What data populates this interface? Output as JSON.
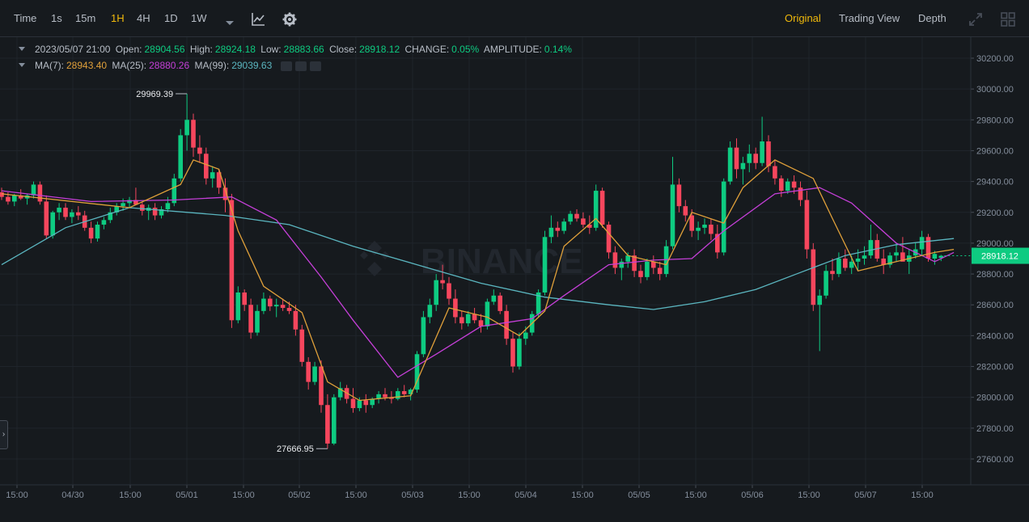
{
  "toolbar": {
    "intervals": [
      {
        "label": "Time",
        "active": false
      },
      {
        "label": "1s",
        "active": false
      },
      {
        "label": "15m",
        "active": false
      },
      {
        "label": "1H",
        "active": true
      },
      {
        "label": "4H",
        "active": false
      },
      {
        "label": "1D",
        "active": false
      },
      {
        "label": "1W",
        "active": false
      }
    ],
    "views": [
      {
        "label": "Original",
        "active": true
      },
      {
        "label": "Trading View",
        "active": false
      },
      {
        "label": "Depth",
        "active": false
      }
    ],
    "icons": [
      "chevron-down-icon",
      "indicator-icon",
      "gear-icon",
      "expand-icon",
      "grid-layout-icon"
    ]
  },
  "ohlc": {
    "date": "2023/05/07 21:00",
    "open_label": "Open:",
    "open": "28904.56",
    "high_label": "High:",
    "high": "28924.18",
    "low_label": "Low:",
    "low": "28883.66",
    "close_label": "Close:",
    "close": "28918.12",
    "change_label": "CHANGE:",
    "change": "0.05%",
    "amplitude_label": "AMPLITUDE:",
    "amplitude": "0.14%"
  },
  "ma": {
    "ma7_label": "MA(7):",
    "ma7": "28943.40",
    "ma25_label": "MA(25):",
    "ma25": "28880.26",
    "ma99_label": "MA(99):",
    "ma99": "29039.63"
  },
  "watermark": "BINANCE",
  "colors": {
    "up": "#0ecb81",
    "down": "#f6465d",
    "ma7": "#e0a03a",
    "ma25": "#c53fd8",
    "ma99": "#5bb6c0",
    "active": "#f0b90b",
    "background": "#161a1e",
    "grid": "#1f242b"
  },
  "chart_data": {
    "type": "candlestick",
    "interval": "1H",
    "ylim": [
      27500,
      30300
    ],
    "y_ticks": [
      "30200.00",
      "30000.00",
      "29800.00",
      "29600.00",
      "29400.00",
      "29200.00",
      "29000.00",
      "28800.00",
      "28600.00",
      "28400.00",
      "28200.00",
      "28000.00",
      "27800.00",
      "27600.00"
    ],
    "x_ticks": [
      "15:00",
      "04/30",
      "15:00",
      "05/01",
      "15:00",
      "05/02",
      "15:00",
      "05/03",
      "15:00",
      "05/04",
      "15:00",
      "05/05",
      "15:00",
      "05/06",
      "15:00",
      "05/07",
      "15:00"
    ],
    "max_label": "29969.39",
    "min_label": "27666.95",
    "last_price": "28918.12",
    "candles": [
      [
        29330,
        29360,
        29280,
        29300
      ],
      [
        29300,
        29330,
        29250,
        29270
      ],
      [
        29270,
        29320,
        29240,
        29310
      ],
      [
        29310,
        29350,
        29280,
        29290
      ],
      [
        29290,
        29320,
        29250,
        29310
      ],
      [
        29310,
        29400,
        29290,
        29380
      ],
      [
        29380,
        29400,
        29250,
        29270
      ],
      [
        29270,
        29310,
        29030,
        29050
      ],
      [
        29050,
        29210,
        29030,
        29200
      ],
      [
        29200,
        29260,
        29150,
        29230
      ],
      [
        29230,
        29260,
        29150,
        29170
      ],
      [
        29170,
        29220,
        29130,
        29200
      ],
      [
        29200,
        29240,
        29150,
        29180
      ],
      [
        29180,
        29210,
        29080,
        29100
      ],
      [
        29100,
        29140,
        29000,
        29030
      ],
      [
        29030,
        29140,
        29010,
        29120
      ],
      [
        29120,
        29170,
        29090,
        29150
      ],
      [
        29150,
        29230,
        29130,
        29200
      ],
      [
        29200,
        29260,
        29180,
        29240
      ],
      [
        29240,
        29290,
        29210,
        29260
      ],
      [
        29260,
        29300,
        29230,
        29280
      ],
      [
        29280,
        29360,
        29260,
        29250
      ],
      [
        29250,
        29270,
        29180,
        29210
      ],
      [
        29210,
        29250,
        29150,
        29230
      ],
      [
        29230,
        29260,
        29150,
        29180
      ],
      [
        29180,
        29240,
        29160,
        29220
      ],
      [
        29220,
        29300,
        29200,
        29260
      ],
      [
        29260,
        29450,
        29240,
        29420
      ],
      [
        29420,
        29740,
        29400,
        29700
      ],
      [
        29700,
        29969.39,
        29600,
        29800
      ],
      [
        29800,
        29840,
        29560,
        29620
      ],
      [
        29620,
        29700,
        29520,
        29580
      ],
      [
        29580,
        29620,
        29380,
        29420
      ],
      [
        29420,
        29500,
        29360,
        29460
      ],
      [
        29460,
        29480,
        29320,
        29360
      ],
      [
        29360,
        29420,
        29200,
        29280
      ],
      [
        29280,
        29320,
        28450,
        28500
      ],
      [
        28500,
        28720,
        28480,
        28680
      ],
      [
        28680,
        28700,
        28560,
        28600
      ],
      [
        28600,
        28640,
        28380,
        28420
      ],
      [
        28420,
        28600,
        28400,
        28560
      ],
      [
        28560,
        28680,
        28540,
        28640
      ],
      [
        28640,
        28660,
        28560,
        28590
      ],
      [
        28590,
        28640,
        28520,
        28600
      ],
      [
        28600,
        28640,
        28560,
        28580
      ],
      [
        28580,
        28620,
        28540,
        28560
      ],
      [
        28560,
        28600,
        28400,
        28440
      ],
      [
        28440,
        28470,
        28200,
        28230
      ],
      [
        28230,
        28260,
        28050,
        28100
      ],
      [
        28100,
        28230,
        28080,
        28200
      ],
      [
        28200,
        28240,
        27900,
        27950
      ],
      [
        27950,
        28020,
        27666.95,
        27700
      ],
      [
        27700,
        28020,
        27690,
        28000
      ],
      [
        28000,
        28100,
        27980,
        28060
      ],
      [
        28060,
        28080,
        27960,
        27990
      ],
      [
        27990,
        28060,
        27900,
        27930
      ],
      [
        27930,
        28000,
        27910,
        27980
      ],
      [
        27980,
        28020,
        27900,
        27950
      ],
      [
        27950,
        28000,
        27930,
        27990
      ],
      [
        27990,
        28040,
        27960,
        28020
      ],
      [
        28020,
        28060,
        27980,
        28000
      ],
      [
        28000,
        28040,
        27960,
        27990
      ],
      [
        27990,
        28060,
        27980,
        28040
      ],
      [
        28040,
        28080,
        28000,
        28020
      ],
      [
        28020,
        28060,
        27980,
        28050
      ],
      [
        28050,
        28300,
        28030,
        28280
      ],
      [
        28280,
        28560,
        28260,
        28520
      ],
      [
        28520,
        28640,
        28480,
        28600
      ],
      [
        28600,
        28800,
        28560,
        28760
      ],
      [
        28760,
        28860,
        28700,
        28740
      ],
      [
        28740,
        28780,
        28600,
        28640
      ],
      [
        28640,
        28700,
        28480,
        28520
      ],
      [
        28520,
        28560,
        28440,
        28480
      ],
      [
        28480,
        28560,
        28460,
        28540
      ],
      [
        28540,
        28580,
        28480,
        28500
      ],
      [
        28500,
        28540,
        28420,
        28460
      ],
      [
        28460,
        28640,
        28440,
        28620
      ],
      [
        28620,
        28700,
        28600,
        28660
      ],
      [
        28660,
        28680,
        28540,
        28560
      ],
      [
        28560,
        28600,
        28340,
        28380
      ],
      [
        28380,
        28420,
        28160,
        28200
      ],
      [
        28200,
        28420,
        28180,
        28380
      ],
      [
        28380,
        28460,
        28340,
        28420
      ],
      [
        28420,
        28560,
        28400,
        28540
      ],
      [
        28540,
        28700,
        28520,
        28680
      ],
      [
        28680,
        29080,
        28660,
        29040
      ],
      [
        29040,
        29180,
        29000,
        29100
      ],
      [
        29100,
        29140,
        29040,
        29080
      ],
      [
        29080,
        29160,
        29060,
        29140
      ],
      [
        29140,
        29210,
        29120,
        29190
      ],
      [
        29190,
        29220,
        29140,
        29160
      ],
      [
        29160,
        29200,
        29100,
        29120
      ],
      [
        29120,
        29180,
        29060,
        29100
      ],
      [
        29100,
        29380,
        29080,
        29340
      ],
      [
        29340,
        29360,
        29100,
        29120
      ],
      [
        29120,
        29140,
        28900,
        28940
      ],
      [
        28940,
        28980,
        28800,
        28840
      ],
      [
        28840,
        28900,
        28760,
        28880
      ],
      [
        28880,
        28940,
        28840,
        28920
      ],
      [
        28920,
        28960,
        28780,
        28820
      ],
      [
        28820,
        28860,
        28740,
        28780
      ],
      [
        28780,
        28900,
        28760,
        28880
      ],
      [
        28880,
        28920,
        28800,
        28840
      ],
      [
        28840,
        28880,
        28760,
        28800
      ],
      [
        28800,
        29020,
        28780,
        28980
      ],
      [
        28980,
        29560,
        28960,
        29380
      ],
      [
        29380,
        29420,
        29200,
        29240
      ],
      [
        29240,
        29280,
        29140,
        29180
      ],
      [
        29180,
        29220,
        29040,
        29080
      ],
      [
        29080,
        29140,
        29020,
        29100
      ],
      [
        29100,
        29160,
        29060,
        29120
      ],
      [
        29120,
        29160,
        29020,
        29060
      ],
      [
        29060,
        29120,
        28900,
        28940
      ],
      [
        28940,
        29420,
        28920,
        29400
      ],
      [
        29400,
        29660,
        29380,
        29620
      ],
      [
        29620,
        29680,
        29420,
        29480
      ],
      [
        29480,
        29560,
        29380,
        29520
      ],
      [
        29520,
        29640,
        29460,
        29580
      ],
      [
        29580,
        29620,
        29480,
        29520
      ],
      [
        29520,
        29820,
        29500,
        29660
      ],
      [
        29660,
        29700,
        29460,
        29500
      ],
      [
        29500,
        29540,
        29380,
        29420
      ],
      [
        29420,
        29440,
        29300,
        29340
      ],
      [
        29340,
        29420,
        29320,
        29400
      ],
      [
        29400,
        29440,
        29320,
        29360
      ],
      [
        29360,
        29400,
        29240,
        29280
      ],
      [
        29280,
        29340,
        28900,
        28960
      ],
      [
        28960,
        29000,
        28560,
        28600
      ],
      [
        28600,
        28700,
        28300,
        28660
      ],
      [
        28660,
        28860,
        28640,
        28820
      ],
      [
        28820,
        28900,
        28760,
        28800
      ],
      [
        28800,
        28940,
        28780,
        28900
      ],
      [
        28900,
        28960,
        28820,
        28840
      ],
      [
        28840,
        28920,
        28800,
        28880
      ],
      [
        28880,
        28960,
        28820,
        28900
      ],
      [
        28900,
        28980,
        28860,
        28920
      ],
      [
        28920,
        29120,
        28900,
        29020
      ],
      [
        29020,
        29060,
        28880,
        28900
      ],
      [
        28900,
        28960,
        28800,
        28860
      ],
      [
        28860,
        28940,
        28840,
        28920
      ],
      [
        28920,
        29000,
        28880,
        28940
      ],
      [
        28940,
        29040,
        28900,
        28880
      ],
      [
        28880,
        28960,
        28800,
        28920
      ],
      [
        28920,
        29000,
        28900,
        28960
      ],
      [
        28960,
        29080,
        28920,
        29040
      ],
      [
        29040,
        29060,
        28880,
        28900
      ],
      [
        28900,
        28950,
        28860,
        28930
      ],
      [
        28904.56,
        28924.18,
        28883.66,
        28918.12
      ]
    ],
    "ma7": [
      [
        0,
        29320
      ],
      [
        20,
        29230
      ],
      [
        28,
        29380
      ],
      [
        30,
        29540
      ],
      [
        34,
        29480
      ],
      [
        37,
        29080
      ],
      [
        41,
        28720
      ],
      [
        47,
        28550
      ],
      [
        51,
        28100
      ],
      [
        56,
        27980
      ],
      [
        64,
        28010
      ],
      [
        66,
        28200
      ],
      [
        70,
        28580
      ],
      [
        76,
        28520
      ],
      [
        81,
        28400
      ],
      [
        85,
        28560
      ],
      [
        88,
        28980
      ],
      [
        93,
        29160
      ],
      [
        98,
        28920
      ],
      [
        104,
        28860
      ],
      [
        108,
        29200
      ],
      [
        113,
        29130
      ],
      [
        116,
        29360
      ],
      [
        121,
        29540
      ],
      [
        127,
        29420
      ],
      [
        130,
        29160
      ],
      [
        134,
        28820
      ],
      [
        140,
        28880
      ],
      [
        146,
        28940
      ],
      [
        149,
        28960
      ]
    ],
    "ma25": [
      [
        0,
        29340
      ],
      [
        14,
        29270
      ],
      [
        27,
        29280
      ],
      [
        36,
        29300
      ],
      [
        43,
        29150
      ],
      [
        50,
        28780
      ],
      [
        55,
        28500
      ],
      [
        62,
        28130
      ],
      [
        68,
        28280
      ],
      [
        75,
        28460
      ],
      [
        83,
        28510
      ],
      [
        88,
        28660
      ],
      [
        95,
        28860
      ],
      [
        102,
        28890
      ],
      [
        108,
        28900
      ],
      [
        113,
        29080
      ],
      [
        121,
        29320
      ],
      [
        128,
        29360
      ],
      [
        133,
        29260
      ],
      [
        140,
        29000
      ],
      [
        146,
        28880
      ],
      [
        149,
        28940
      ]
    ],
    "ma99": [
      [
        0,
        28860
      ],
      [
        10,
        29100
      ],
      [
        20,
        29230
      ],
      [
        35,
        29180
      ],
      [
        45,
        29120
      ],
      [
        55,
        28980
      ],
      [
        65,
        28860
      ],
      [
        75,
        28740
      ],
      [
        85,
        28650
      ],
      [
        95,
        28600
      ],
      [
        102,
        28570
      ],
      [
        110,
        28620
      ],
      [
        118,
        28700
      ],
      [
        125,
        28810
      ],
      [
        132,
        28920
      ],
      [
        140,
        28990
      ],
      [
        149,
        29030
      ]
    ]
  }
}
